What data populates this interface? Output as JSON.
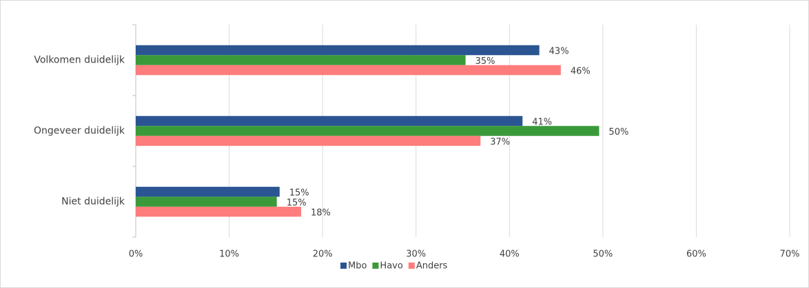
{
  "chart_data": {
    "type": "bar",
    "orientation": "horizontal",
    "categories": [
      "Volkomen duidelijk",
      "Ongeveer duidelijk",
      "Niet duidelijk"
    ],
    "series": [
      {
        "name": "Mbo",
        "color": "#2a5592",
        "values": [
          43.2,
          41.4,
          15.4
        ],
        "value_labels": [
          "43%",
          "41%",
          "15%"
        ]
      },
      {
        "name": "Havo",
        "color": "#3a9a3a",
        "values": [
          35.3,
          49.6,
          15.1
        ],
        "value_labels": [
          "35%",
          "50%",
          "15%"
        ]
      },
      {
        "name": "Anders",
        "color": "#ff7c7c",
        "values": [
          45.5,
          36.9,
          17.7
        ],
        "value_labels": [
          "46%",
          "37%",
          "18%"
        ]
      }
    ],
    "xlim": [
      0,
      70
    ],
    "xticks": [
      {
        "value": 0,
        "label": "0%"
      },
      {
        "value": 10,
        "label": "10%"
      },
      {
        "value": 20,
        "label": "20%"
      },
      {
        "value": 30,
        "label": "30%"
      },
      {
        "value": 40,
        "label": "40%"
      },
      {
        "value": 50,
        "label": "50%"
      },
      {
        "value": 60,
        "label": "60%"
      },
      {
        "value": 70,
        "label": "70%"
      }
    ],
    "grid": true,
    "legend": "bottom"
  }
}
